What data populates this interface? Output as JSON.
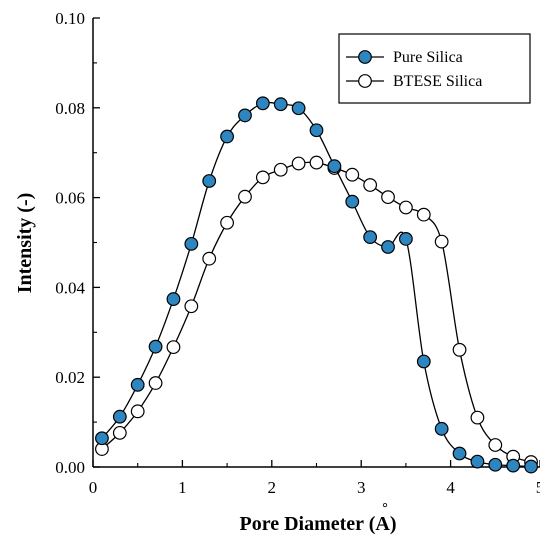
{
  "chart_data": {
    "type": "line",
    "xlabel": "Pore Diameter (Å)",
    "xlabel_main": "Pore Diameter (",
    "xlabel_unit": "A",
    "xlabel_ring": "°",
    "xlabel_close": ")",
    "ylabel": "Intensity (-)",
    "xlim": [
      0,
      5
    ],
    "ylim": [
      0,
      0.1
    ],
    "x_ticks": [
      "0",
      "1",
      "2",
      "3",
      "4",
      "5"
    ],
    "y_ticks": [
      "0.00",
      "0.02",
      "0.04",
      "0.06",
      "0.08",
      "0.10"
    ],
    "legend_position": "top-right",
    "grid": false,
    "series": [
      {
        "name": "Pure Silica",
        "marker": "filled-circle",
        "fill_color": "#2E86C1",
        "x": [
          0.1,
          0.3,
          0.5,
          0.7,
          0.9,
          1.1,
          1.3,
          1.5,
          1.7,
          1.9,
          2.1,
          2.3,
          2.5,
          2.7,
          2.9,
          3.1,
          3.3,
          3.5,
          3.7,
          3.9,
          4.1,
          4.3,
          4.5,
          4.7,
          4.9
        ],
        "y": [
          0.0064,
          0.0112,
          0.0183,
          0.0268,
          0.0374,
          0.0497,
          0.0637,
          0.0736,
          0.0783,
          0.081,
          0.0808,
          0.0799,
          0.075,
          0.067,
          0.0591,
          0.0512,
          0.049,
          0.0508,
          0.0235,
          0.0085,
          0.003,
          0.0012,
          0.0005,
          0.0003,
          0.0001
        ]
      },
      {
        "name": "BTESE Silica",
        "marker": "open-circle",
        "fill_color": "#ffffff",
        "x": [
          0.1,
          0.3,
          0.5,
          0.7,
          0.9,
          1.1,
          1.3,
          1.5,
          1.7,
          1.9,
          2.1,
          2.3,
          2.5,
          2.7,
          2.9,
          3.1,
          3.3,
          3.5,
          3.7,
          3.9,
          4.1,
          4.3,
          4.5,
          4.7,
          4.9
        ],
        "y": [
          0.004,
          0.0076,
          0.0124,
          0.0187,
          0.0267,
          0.0358,
          0.0464,
          0.0544,
          0.0602,
          0.0645,
          0.0662,
          0.0676,
          0.0678,
          0.0666,
          0.0651,
          0.0628,
          0.0601,
          0.0578,
          0.0562,
          0.0502,
          0.0261,
          0.011,
          0.0049,
          0.0023,
          0.0011
        ]
      }
    ]
  }
}
